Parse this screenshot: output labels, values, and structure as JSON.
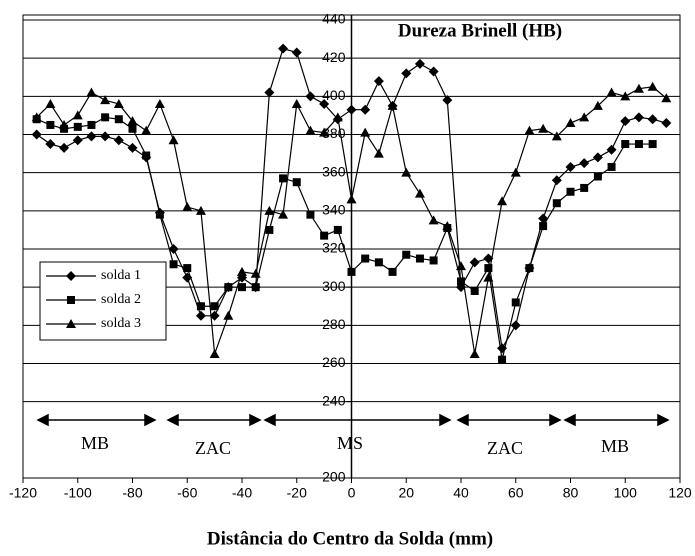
{
  "chart_data": {
    "type": "line",
    "title": "Dureza Brinell (HB)",
    "x_label": "Distância do Centro da Solda (mm)",
    "annotations": [
      "MB",
      "ZAC",
      "MS",
      "ZAC",
      "MB"
    ],
    "xlim": [
      -120,
      120
    ],
    "xticks": [
      -120,
      -100,
      -80,
      -60,
      -40,
      -20,
      0,
      20,
      40,
      60,
      80,
      100,
      120
    ],
    "ylim": [
      200,
      440
    ],
    "yticks": [
      200,
      240,
      260,
      280,
      300,
      320,
      340,
      360,
      380,
      400,
      420,
      440
    ],
    "grid": true,
    "series": [
      {
        "name": "solda  1",
        "color": "#000000",
        "marker": "diamond",
        "x": [
          -115,
          -110,
          -105,
          -100,
          -95,
          -90,
          -85,
          -80,
          -75,
          -70,
          -65,
          -60,
          -55,
          -50,
          -45,
          -40,
          -35,
          -30,
          -25,
          -20,
          -15,
          -10,
          -5,
          0,
          5,
          10,
          15,
          20,
          25,
          30,
          35,
          40,
          45,
          50,
          55,
          60,
          65,
          70,
          75,
          80,
          85,
          90,
          95,
          100,
          105,
          110,
          115
        ],
        "values": [
          380,
          375,
          373,
          377,
          379,
          379,
          377,
          373,
          368,
          339,
          320,
          305,
          285,
          285,
          300,
          305,
          300,
          402,
          425,
          423,
          400,
          396,
          388,
          393,
          393,
          408,
          395,
          412,
          417,
          413,
          398,
          300,
          313,
          315,
          268,
          280,
          310,
          336,
          356,
          363,
          365,
          368,
          372,
          387,
          389,
          388,
          386
        ]
      },
      {
        "name": "solda 2",
        "color": "#000000",
        "marker": "square",
        "x": [
          -115,
          -110,
          -105,
          -100,
          -95,
          -90,
          -85,
          -80,
          -75,
          -70,
          -65,
          -60,
          -55,
          -50,
          -45,
          -40,
          -35,
          -30,
          -25,
          -20,
          -15,
          -10,
          -5,
          0,
          5,
          10,
          15,
          20,
          25,
          30,
          35,
          40,
          45,
          50,
          55,
          60,
          65,
          70,
          75,
          80,
          85,
          90,
          95,
          100,
          105,
          110
        ],
        "values": [
          388,
          385,
          383,
          384,
          385,
          389,
          388,
          383,
          369,
          338,
          312,
          310,
          290,
          290,
          300,
          300,
          300,
          330,
          357,
          355,
          338,
          327,
          330,
          308,
          315,
          313,
          308,
          317,
          315,
          314,
          331,
          303,
          298,
          310,
          262,
          292,
          310,
          332,
          344,
          350,
          352,
          358,
          363,
          375,
          375,
          375
        ]
      },
      {
        "name": "solda 3",
        "color": "#000000",
        "marker": "triangle",
        "x": [
          -115,
          -110,
          -105,
          -100,
          -95,
          -90,
          -85,
          -80,
          -75,
          -70,
          -65,
          -60,
          -55,
          -50,
          -45,
          -40,
          -35,
          -30,
          -25,
          -20,
          -15,
          -10,
          -5,
          0,
          5,
          10,
          15,
          20,
          25,
          30,
          35,
          40,
          45,
          50,
          55,
          60,
          65,
          70,
          75,
          80,
          85,
          90,
          95,
          100,
          105,
          110,
          115
        ],
        "values": [
          389,
          396,
          385,
          390,
          402,
          398,
          396,
          387,
          382,
          396,
          377,
          342,
          340,
          265,
          285,
          308,
          307,
          340,
          338,
          396,
          382,
          381,
          389,
          346,
          381,
          370,
          395,
          360,
          349,
          335,
          332,
          311,
          265,
          305,
          345,
          360,
          382,
          383,
          379,
          386,
          389,
          395,
          402,
          400,
          404,
          405,
          399
        ]
      }
    ]
  }
}
